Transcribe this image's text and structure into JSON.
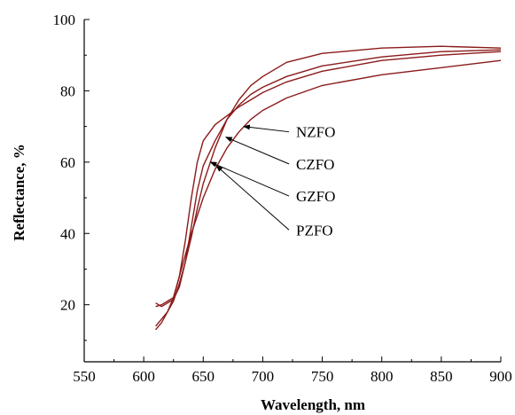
{
  "chart_data": {
    "type": "line",
    "xlabel": "Wavelength, nm",
    "ylabel": "Reflectance, %",
    "xlim": [
      550,
      900
    ],
    "ylim": [
      4,
      100
    ],
    "xticks": [
      550,
      600,
      650,
      700,
      750,
      800,
      850,
      900
    ],
    "yticks": [
      20,
      40,
      60,
      80,
      100
    ],
    "grid": false,
    "line_color": "#8b1a1a",
    "series": [
      {
        "name": "NZFO",
        "x": [
          610,
          615,
          620,
          625,
          630,
          635,
          640,
          645,
          650,
          660,
          670,
          680,
          690,
          700,
          720,
          750,
          800,
          850,
          900
        ],
        "y": [
          20.5,
          19.5,
          20.5,
          21.5,
          25,
          32,
          42,
          52,
          59,
          66,
          72,
          76,
          79,
          81,
          84,
          87,
          89.5,
          91,
          91.5
        ]
      },
      {
        "name": "CZFO",
        "x": [
          610,
          615,
          620,
          625,
          630,
          635,
          640,
          645,
          650,
          660,
          670,
          680,
          690,
          700,
          720,
          750,
          800,
          850,
          900
        ],
        "y": [
          19.5,
          20,
          21,
          22,
          28,
          38,
          50,
          60,
          66,
          70.5,
          73,
          75.5,
          77.5,
          79.5,
          82.5,
          85.5,
          88.5,
          90,
          91
        ]
      },
      {
        "name": "GZFO",
        "x": [
          610,
          615,
          620,
          625,
          630,
          635,
          640,
          645,
          650,
          660,
          670,
          680,
          690,
          700,
          720,
          750,
          800,
          850,
          900
        ],
        "y": [
          14,
          16,
          18,
          21,
          26,
          32,
          39,
          47,
          54,
          64,
          72,
          77.5,
          81.5,
          84,
          88,
          90.5,
          92,
          92.5,
          92
        ]
      },
      {
        "name": "PZFO",
        "x": [
          610,
          615,
          620,
          625,
          630,
          635,
          640,
          645,
          650,
          660,
          670,
          680,
          690,
          700,
          720,
          750,
          800,
          850,
          900
        ],
        "y": [
          13,
          15,
          18,
          22,
          28,
          34,
          40,
          45,
          50,
          58,
          64,
          68.5,
          72,
          74.5,
          78,
          81.5,
          84.5,
          86.5,
          88.5
        ]
      }
    ],
    "annotations": [
      {
        "label": "NZFO",
        "arrow_to": [
          684,
          70
        ],
        "label_at": [
          725,
          67
        ]
      },
      {
        "label": "CZFO",
        "arrow_to": [
          669,
          67
        ],
        "label_at": [
          725,
          58
        ]
      },
      {
        "label": "GZFO",
        "arrow_to": [
          656,
          60
        ],
        "label_at": [
          725,
          49
        ]
      },
      {
        "label": "PZFO",
        "arrow_to": [
          661,
          59
        ],
        "label_at": [
          725,
          39.5
        ]
      }
    ]
  }
}
